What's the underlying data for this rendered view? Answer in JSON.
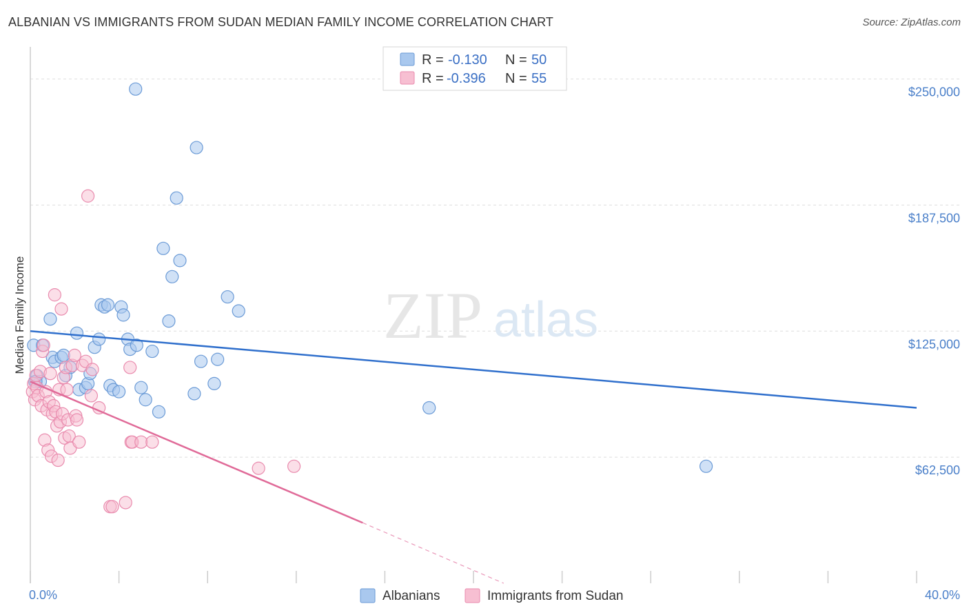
{
  "title": "ALBANIAN VS IMMIGRANTS FROM SUDAN MEDIAN FAMILY INCOME CORRELATION CHART",
  "source": "Source: ZipAtlas.com",
  "watermark": {
    "zip": "ZIP",
    "atlas": "atlas"
  },
  "legend": {
    "r_label": "R =",
    "n_label": "N =",
    "rows": [
      {
        "r": "-0.130",
        "n": "50"
      },
      {
        "r": "-0.396",
        "n": "55"
      }
    ]
  },
  "colors": {
    "albanians_fill": "#a9c8ee",
    "albanians_stroke": "#6a9ad6",
    "albanians_line": "#2f6fcc",
    "sudan_fill": "#f7bfd2",
    "sudan_stroke": "#e98aad",
    "sudan_line": "#e06a98",
    "grid": "#dddddd",
    "axis": "#cccccc"
  },
  "chart_data": {
    "type": "scatter",
    "title": "ALBANIAN VS IMMIGRANTS FROM SUDAN MEDIAN FAMILY INCOME CORRELATION CHART",
    "xlabel": "",
    "ylabel": "Median Family Income",
    "xlim": [
      0,
      40
    ],
    "ylim": [
      0,
      262500
    ],
    "x_tick_labels": [
      "0.0%",
      "40.0%"
    ],
    "y_ticks": [
      62500,
      125000,
      187500,
      250000
    ],
    "y_tick_labels": [
      "$62,500",
      "$125,000",
      "$187,500",
      "$250,000"
    ],
    "series": [
      {
        "name": "Albanians",
        "R": -0.13,
        "N": 50,
        "trend": {
          "x0": 0,
          "y0": 125000,
          "x1": 40,
          "y1": 87000
        },
        "points": [
          [
            0.15,
            118000
          ],
          [
            0.2,
            100000
          ],
          [
            0.3,
            103000
          ],
          [
            0.45,
            100000
          ],
          [
            0.55,
            118000
          ],
          [
            0.9,
            131000
          ],
          [
            1.0,
            112000
          ],
          [
            1.1,
            110000
          ],
          [
            1.4,
            112000
          ],
          [
            1.5,
            113000
          ],
          [
            1.6,
            103000
          ],
          [
            1.8,
            107000
          ],
          [
            2.1,
            124000
          ],
          [
            2.2,
            96000
          ],
          [
            2.5,
            97000
          ],
          [
            2.6,
            99000
          ],
          [
            2.7,
            104000
          ],
          [
            2.9,
            117000
          ],
          [
            3.1,
            121000
          ],
          [
            3.2,
            138000
          ],
          [
            3.35,
            137000
          ],
          [
            3.5,
            138000
          ],
          [
            3.6,
            98000
          ],
          [
            3.75,
            96000
          ],
          [
            4.0,
            95000
          ],
          [
            4.1,
            137000
          ],
          [
            4.2,
            133000
          ],
          [
            4.4,
            121000
          ],
          [
            4.5,
            116000
          ],
          [
            4.8,
            118000
          ],
          [
            5.0,
            97000
          ],
          [
            5.2,
            91000
          ],
          [
            5.5,
            115000
          ],
          [
            5.8,
            85000
          ],
          [
            6.0,
            166000
          ],
          [
            6.25,
            130000
          ],
          [
            6.4,
            152000
          ],
          [
            6.6,
            191000
          ],
          [
            6.75,
            160000
          ],
          [
            7.4,
            94000
          ],
          [
            7.5,
            216000
          ],
          [
            7.7,
            110000
          ],
          [
            8.3,
            99000
          ],
          [
            8.45,
            111000
          ],
          [
            8.9,
            142000
          ],
          [
            9.4,
            135000
          ],
          [
            4.75,
            245000
          ],
          [
            18.0,
            87000
          ],
          [
            30.5,
            58000
          ],
          [
            0.25,
            100000
          ]
        ]
      },
      {
        "name": "Immigrants from Sudan",
        "R": -0.396,
        "N": 55,
        "trend": {
          "x0": 0,
          "y0": 100000,
          "x1": 15,
          "y1": 30000,
          "dashed_to": {
            "x": 22,
            "y": -3000
          }
        },
        "points": [
          [
            0.1,
            95000
          ],
          [
            0.15,
            99000
          ],
          [
            0.2,
            91000
          ],
          [
            0.25,
            103000
          ],
          [
            0.3,
            97000
          ],
          [
            0.35,
            93000
          ],
          [
            0.45,
            105000
          ],
          [
            0.5,
            88000
          ],
          [
            0.55,
            115000
          ],
          [
            0.6,
            118000
          ],
          [
            0.65,
            71000
          ],
          [
            0.7,
            95000
          ],
          [
            0.75,
            86000
          ],
          [
            0.8,
            66000
          ],
          [
            0.85,
            90000
          ],
          [
            0.9,
            104000
          ],
          [
            0.95,
            63000
          ],
          [
            1.0,
            84000
          ],
          [
            1.05,
            88000
          ],
          [
            1.1,
            143000
          ],
          [
            1.15,
            85000
          ],
          [
            1.2,
            78000
          ],
          [
            1.25,
            61000
          ],
          [
            1.3,
            96000
          ],
          [
            1.35,
            80000
          ],
          [
            1.4,
            136000
          ],
          [
            1.45,
            84000
          ],
          [
            1.5,
            102000
          ],
          [
            1.55,
            72000
          ],
          [
            1.6,
            107000
          ],
          [
            1.65,
            96000
          ],
          [
            1.7,
            81000
          ],
          [
            1.75,
            73000
          ],
          [
            1.8,
            67000
          ],
          [
            1.9,
            108000
          ],
          [
            2.0,
            113000
          ],
          [
            2.05,
            83000
          ],
          [
            2.1,
            81000
          ],
          [
            2.2,
            70000
          ],
          [
            2.35,
            108000
          ],
          [
            2.5,
            110000
          ],
          [
            2.6,
            192000
          ],
          [
            2.75,
            93000
          ],
          [
            2.8,
            106000
          ],
          [
            3.1,
            87000
          ],
          [
            3.6,
            38000
          ],
          [
            3.7,
            38000
          ],
          [
            4.3,
            40000
          ],
          [
            4.5,
            107000
          ],
          [
            4.55,
            70000
          ],
          [
            4.6,
            70000
          ],
          [
            5.0,
            70000
          ],
          [
            5.5,
            70000
          ],
          [
            10.3,
            57000
          ],
          [
            11.9,
            58000
          ]
        ]
      }
    ]
  },
  "bottom_legend": [
    "Albanians",
    "Immigrants from Sudan"
  ]
}
